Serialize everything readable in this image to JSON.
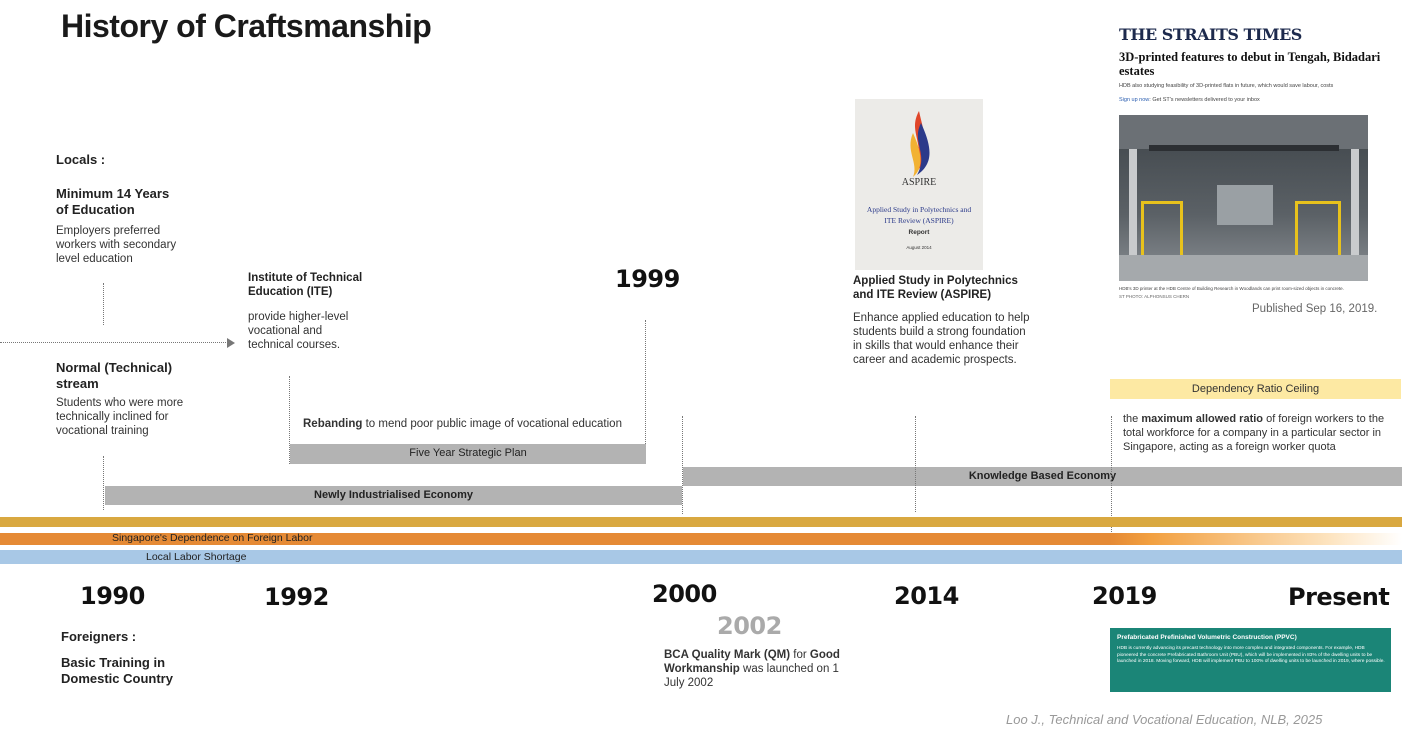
{
  "title": "History of Craftsmanship",
  "years": {
    "y1990": "1990",
    "y1992": "1992",
    "y1999": "1999",
    "y2000": "2000",
    "y2002": "2002",
    "y2014": "2014",
    "y2019": "2019",
    "present": "Present"
  },
  "locals": {
    "label": "Locals :",
    "heading": "Minimum 14 Years of Education",
    "body": "Employers preferred workers with secondary level education"
  },
  "normal_technical": {
    "heading": "Normal (Technical) stream",
    "body": "Students who were more technically inclined for vocational training"
  },
  "ite": {
    "heading": "Institute of Technical Education (ITE)",
    "body": "provide higher-level vocational and technical courses."
  },
  "rebranding": {
    "bold": "Rebanding",
    "rest": " to mend poor public image of vocational education"
  },
  "bars": {
    "five_year": "Five Year Strategic Plan",
    "newly_industrialised": "Newly Industrialised Economy",
    "knowledge": "Knowledge Based Economy"
  },
  "bands": {
    "dependence": "Singapore's Dependence on Foreign Labor",
    "shortage": "Local Labor Shortage",
    "colors": {
      "gold": "#d9a840",
      "orange": "#e58a35",
      "blue": "#a8c8e6"
    }
  },
  "aspire": {
    "heading": "Applied Study in Polytechnics and ITE Review (ASPIRE)",
    "body": "Enhance applied education to help students build a strong foundation in skills that would enhance their career and academic prospects.",
    "cover_logo": "ASPIRE",
    "cover_title": "Applied Study in Polytechnics and ITE Review (ASPIRE)",
    "cover_sub": "Report",
    "cover_date": "August 2014"
  },
  "straits_times": {
    "logo": "THE STRAITS TIMES",
    "headline": "3D-printed features to debut in Tengah, Bidadari estates",
    "sub": "HDB also studying feasibility of 3D-printed flats in future, which would save labour, costs",
    "signup_link": "Sign up now",
    "signup_rest": ": Get ST's newsletters delivered to your inbox",
    "caption": "HDB's 3D printer at the HDB Centre of Building Research in Woodlands can print room-sized objects in concrete.",
    "credit": "ST PHOTO: ALPHONSUS CHERN",
    "published": "Published Sep 16, 2019."
  },
  "dependency": {
    "label": "Dependency Ratio Ceiling",
    "pre": "the ",
    "bold": "maximum allowed ratio",
    "post": " of foreign workers to the total workforce for a company in a particular sector in Singapore, acting as a foreign worker quota"
  },
  "foreigners": {
    "label": "Foreigners :",
    "heading": "Basic Training in Domestic Country"
  },
  "bca": {
    "bold1": "BCA Quality Mark (QM)",
    "mid": " for ",
    "bold2": "Good Workmanship",
    "post": " was launched on 1 July 2002"
  },
  "ppvc": {
    "title": "Prefabricated Prefinished Volumetric Construction (PPVC)",
    "body": "HDB is currently advancing its precast technology into more complex and integrated components. For example, HDB pioneered the concrete Prefabricated Bathroom Unit (PBU), which will be implemented in 83% of the dwelling units to be launched in 2018. Moving forward, HDB will implement PBU to 100% of dwelling units to be launched in 2019, where possible."
  },
  "citation": "Loo J., Technical and Vocational Education, NLB, 2025"
}
